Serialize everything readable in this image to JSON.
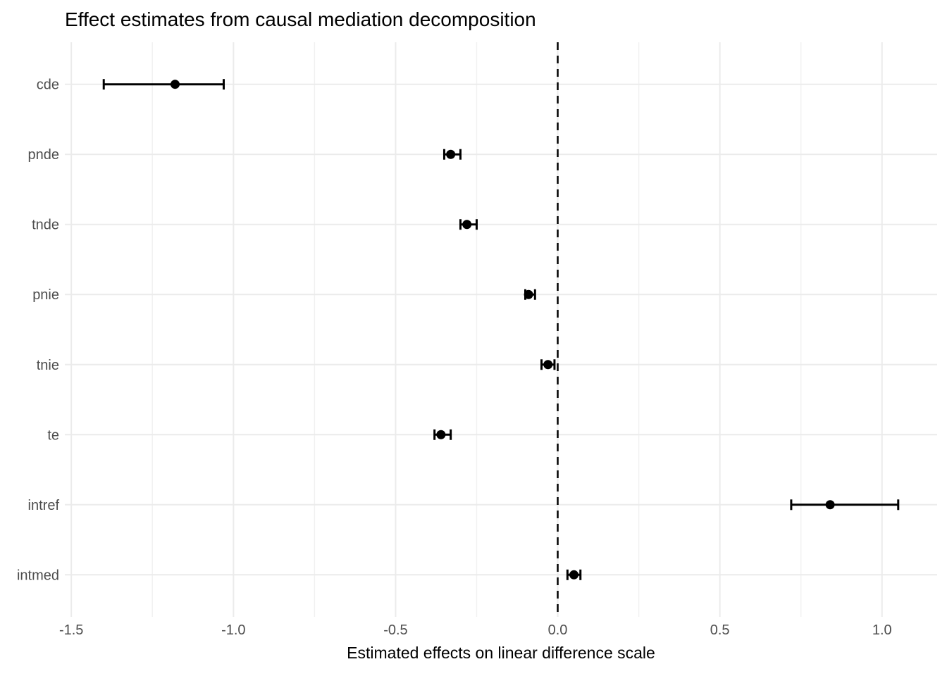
{
  "header": {
    "title": "Effect estimates from causal mediation decomposition"
  },
  "chart_data": {
    "type": "scatter",
    "variant": "forest-plot-with-error-bars",
    "title": "Effect estimates from causal mediation decomposition",
    "xlabel": "Estimated effects on linear difference scale",
    "ylabel": "",
    "categories": [
      "cde",
      "pnde",
      "tnde",
      "pnie",
      "tnie",
      "te",
      "intref",
      "intmed"
    ],
    "points": [
      {
        "label": "cde",
        "estimate": -1.18,
        "ci_low": -1.4,
        "ci_high": -1.03
      },
      {
        "label": "pnde",
        "estimate": -0.33,
        "ci_low": -0.35,
        "ci_high": -0.3
      },
      {
        "label": "tnde",
        "estimate": -0.28,
        "ci_low": -0.3,
        "ci_high": -0.25
      },
      {
        "label": "pnie",
        "estimate": -0.09,
        "ci_low": -0.1,
        "ci_high": -0.07
      },
      {
        "label": "tnie",
        "estimate": -0.03,
        "ci_low": -0.05,
        "ci_high": -0.01
      },
      {
        "label": "te",
        "estimate": -0.36,
        "ci_low": -0.38,
        "ci_high": -0.33
      },
      {
        "label": "intref",
        "estimate": 0.84,
        "ci_low": 0.72,
        "ci_high": 1.05
      },
      {
        "label": "intmed",
        "estimate": 0.05,
        "ci_low": 0.03,
        "ci_high": 0.07
      }
    ],
    "x_ticks": [
      -1.5,
      -1.0,
      -0.5,
      0.0,
      0.5,
      1.0
    ],
    "x_tick_labels": [
      "-1.5",
      "-1.0",
      "-0.5",
      "0.0",
      "0.5",
      "1.0"
    ],
    "x_minor_ticks": [
      -1.25,
      -0.75,
      -0.25,
      0.25,
      0.75
    ],
    "xlim": [
      -1.52,
      1.17
    ],
    "reference_line_x": 0.0,
    "grid": {
      "major": true,
      "minor_x": true,
      "minor_y": false
    },
    "legend": "none",
    "colors": {
      "background": "#FFFFFF",
      "grid_major": "#EBEBEB",
      "grid_minor": "#F1F1F1",
      "point": "#000000",
      "errorbar": "#000000",
      "reference_line": "#000000",
      "axis_text": "#4D4D4D",
      "title_text": "#000000"
    }
  }
}
